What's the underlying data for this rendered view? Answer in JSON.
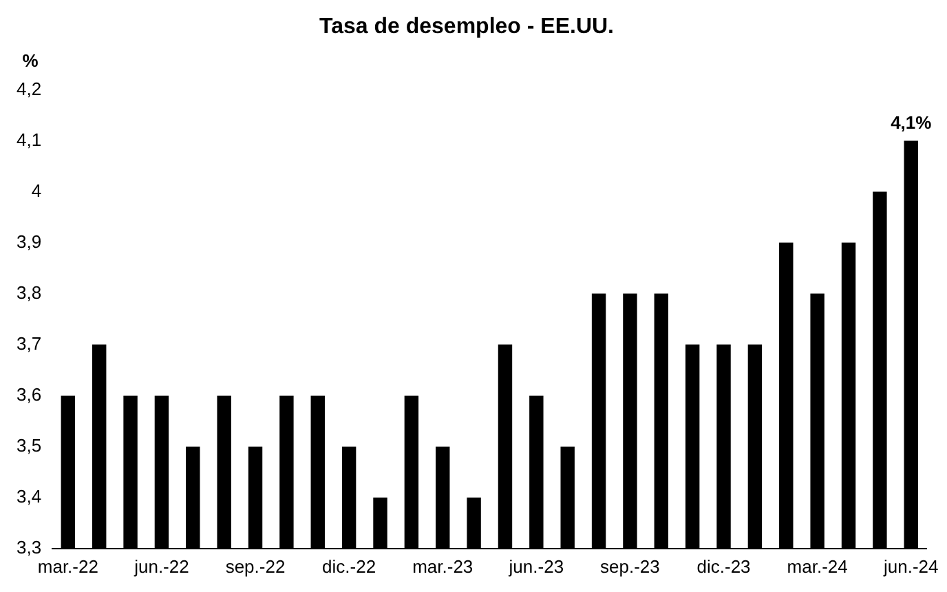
{
  "chart_data": {
    "type": "bar",
    "title": "Tasa de desempleo - EE.UU.",
    "ylabel": "%",
    "categories": [
      "mar.-22",
      null,
      null,
      "jun.-22",
      null,
      null,
      "sep.-22",
      null,
      null,
      "dic.-22",
      null,
      null,
      "mar.-23",
      null,
      null,
      "jun.-23",
      null,
      null,
      "sep.-23",
      null,
      null,
      "dic.-23",
      null,
      null,
      "mar.-24",
      null,
      null,
      "jun.-24"
    ],
    "values": [
      3.6,
      3.7,
      3.6,
      3.6,
      3.5,
      3.6,
      3.5,
      3.6,
      3.6,
      3.5,
      3.4,
      3.6,
      3.5,
      3.4,
      3.7,
      3.6,
      3.5,
      3.8,
      3.8,
      3.8,
      3.7,
      3.7,
      3.7,
      3.9,
      3.8,
      3.9,
      4.0,
      4.1
    ],
    "color": "#000000",
    "ylim": [
      3.3,
      4.2
    ],
    "yticks": [
      {
        "value": 3.3,
        "label": "3,3"
      },
      {
        "value": 3.4,
        "label": "3,4"
      },
      {
        "value": 3.5,
        "label": "3,5"
      },
      {
        "value": 3.6,
        "label": "3,6"
      },
      {
        "value": 3.7,
        "label": "3,7"
      },
      {
        "value": 3.8,
        "label": "3,8"
      },
      {
        "value": 3.9,
        "label": "3,9"
      },
      {
        "value": 4,
        "label": "4"
      },
      {
        "value": 4.1,
        "label": "4,1"
      },
      {
        "value": 4.2,
        "label": "4,2"
      }
    ],
    "grid": false,
    "legend": false,
    "annotations": [
      {
        "text": "4,1%",
        "x": "jun.-24",
        "y": 4.1
      }
    ]
  }
}
